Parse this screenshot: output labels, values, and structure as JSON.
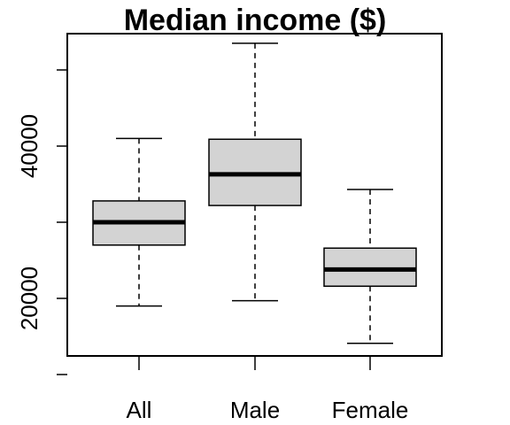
{
  "chart_data": {
    "type": "boxplot",
    "title": "Median income ($)",
    "xlabel": "",
    "ylabel": "",
    "categories": [
      "All",
      "Male",
      "Female"
    ],
    "boxes": [
      {
        "category": "All",
        "whisker_low": 19000,
        "q1": 27000,
        "median": 30000,
        "q3": 32800,
        "whisker_high": 41000
      },
      {
        "category": "Male",
        "whisker_low": 19700,
        "q1": 32200,
        "median": 36300,
        "q3": 40900,
        "whisker_high": 53500
      },
      {
        "category": "Female",
        "whisker_low": 14100,
        "q1": 21600,
        "median": 23800,
        "q3": 26600,
        "whisker_high": 34300
      }
    ],
    "ylim": [
      12500,
      55000
    ],
    "y_ticks": [
      10000,
      20000,
      30000,
      40000,
      50000
    ],
    "y_tick_labels": [
      "20000",
      "40000"
    ],
    "box_color": "#d3d3d3",
    "grid": false,
    "legend": "none"
  }
}
